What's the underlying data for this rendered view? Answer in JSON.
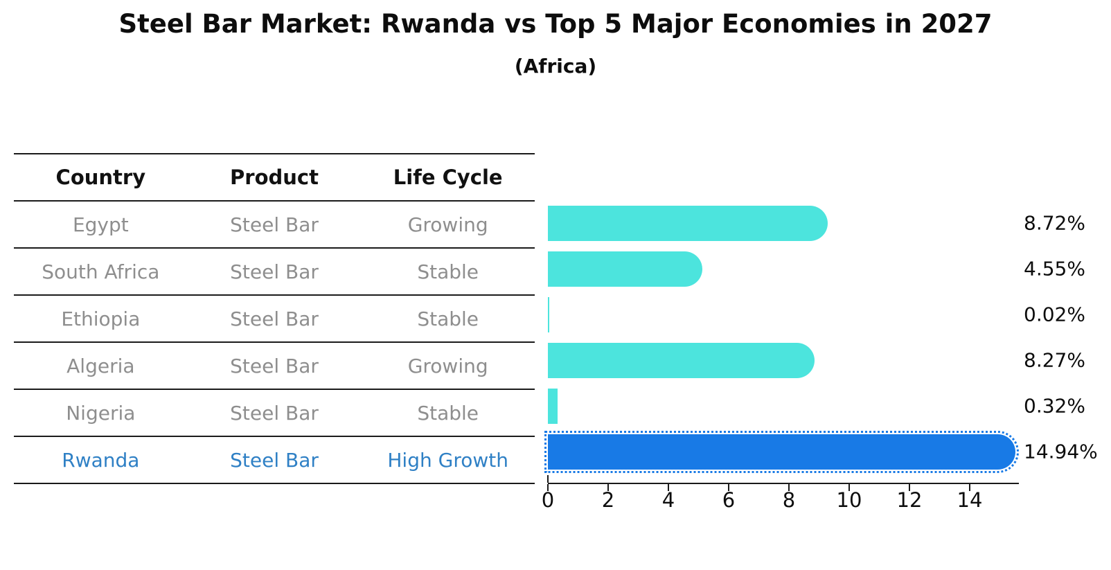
{
  "title": "Steel Bar Market: Rwanda vs Top 5 Major Economies in 2027",
  "subtitle": "(Africa)",
  "table": {
    "headers": [
      "Country",
      "Product",
      "Life Cycle"
    ],
    "rows": [
      {
        "country": "Egypt",
        "product": "Steel Bar",
        "life_cycle": "Growing",
        "highlight": false
      },
      {
        "country": "South Africa",
        "product": "Steel Bar",
        "life_cycle": "Stable",
        "highlight": false
      },
      {
        "country": "Ethiopia",
        "product": "Steel Bar",
        "life_cycle": "Stable",
        "highlight": false
      },
      {
        "country": "Algeria",
        "product": "Steel Bar",
        "life_cycle": "Growing",
        "highlight": false
      },
      {
        "country": "Nigeria",
        "product": "Steel Bar",
        "life_cycle": "Stable",
        "highlight": false
      },
      {
        "country": "Rwanda",
        "product": "Steel Bar",
        "life_cycle": "High Growth",
        "highlight": true
      }
    ]
  },
  "chart_data": {
    "type": "bar",
    "orientation": "horizontal",
    "title": "Steel Bar Market: Rwanda vs Top 5 Major Economies in 2027",
    "subtitle": "(Africa)",
    "categories": [
      "Egypt",
      "South Africa",
      "Ethiopia",
      "Algeria",
      "Nigeria",
      "Rwanda"
    ],
    "values": [
      8.72,
      4.55,
      0.02,
      8.27,
      0.32,
      14.94
    ],
    "labels": [
      "8.72%",
      "4.55%",
      "0.02%",
      "8.27%",
      "0.32%",
      "14.94%"
    ],
    "xlabel": "",
    "ylabel": "",
    "xlim": [
      0,
      15.6
    ],
    "x_ticks": [
      0,
      2,
      4,
      6,
      8,
      10,
      12,
      14
    ],
    "grid": false,
    "legend": "none",
    "bar_color": "#4ce4dd",
    "highlight_color": "#187ae6",
    "highlight_index": 5,
    "highlight_style": "dotted-edge"
  },
  "colors": {
    "bar_cyan": "#4ce4dd",
    "bar_blue": "#187ae6",
    "highlight_text": "#2f80c5",
    "row_text": "#8e8e8e",
    "header_text": "#111111",
    "axis": "#1a1a1a",
    "background": "#ffffff"
  }
}
